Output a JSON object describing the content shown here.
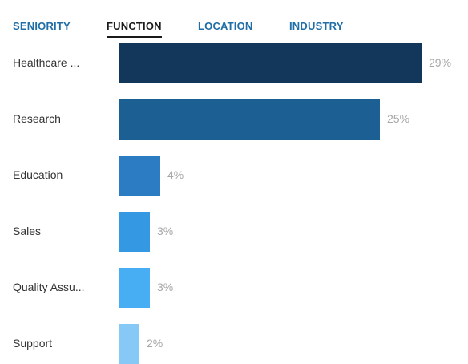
{
  "tabs": [
    {
      "label": "SENIORITY",
      "active": false
    },
    {
      "label": "FUNCTION",
      "active": true
    },
    {
      "label": "LOCATION",
      "active": false
    },
    {
      "label": "INDUSTRY",
      "active": false
    }
  ],
  "chart_data": {
    "type": "bar",
    "orientation": "horizontal",
    "categories": [
      "Healthcare ...",
      "Research",
      "Education",
      "Sales",
      "Quality Assu...",
      "Support"
    ],
    "values": [
      29,
      25,
      4,
      3,
      3,
      2
    ],
    "value_labels": [
      "29%",
      "25%",
      "4%",
      "3%",
      "3%",
      "2%"
    ],
    "colors": [
      "#13375a",
      "#1b5f93",
      "#2b7cc2",
      "#3598e2",
      "#47aef3",
      "#86c9f7"
    ],
    "title": "",
    "xlabel": "",
    "ylabel": ""
  }
}
